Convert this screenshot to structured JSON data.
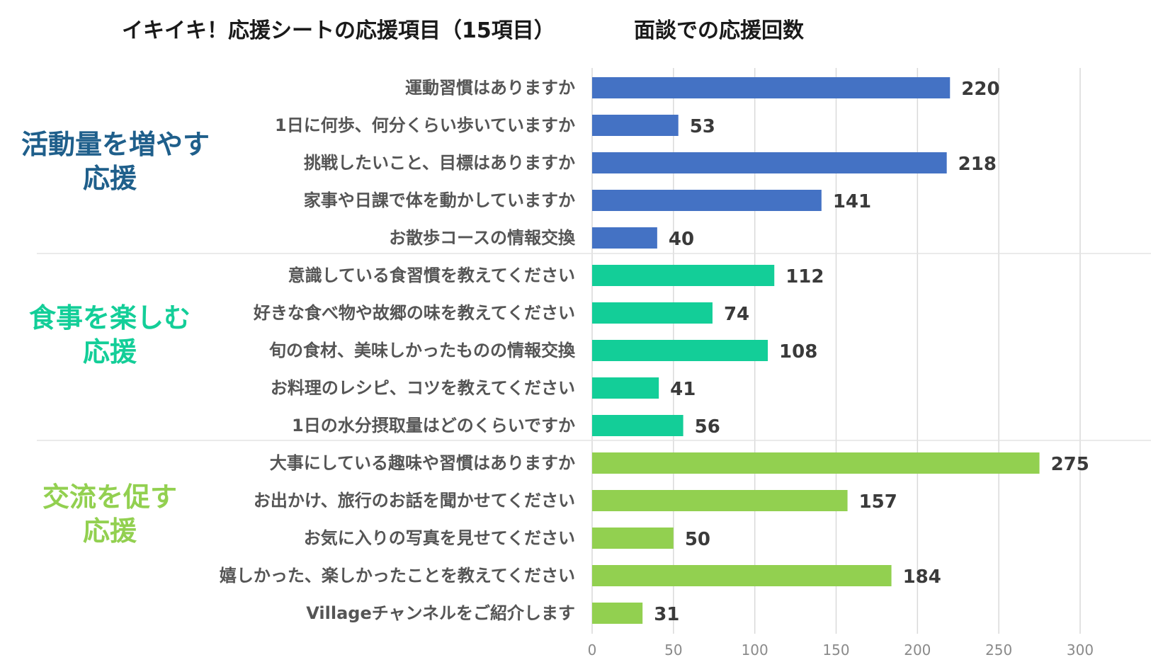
{
  "titles": {
    "left": "イキイキ！応援シートの応援項目（15項目）",
    "right": "面談での応援回数"
  },
  "groups": [
    {
      "name": "活動量を増やす",
      "name2": "応援",
      "color": "#4472C4"
    },
    {
      "name": "食事を楽しむ",
      "name2": "応援",
      "color": "#13CE98"
    },
    {
      "name": "交流を促す",
      "name2": "応援",
      "color": "#92D050"
    }
  ],
  "group_label_colors": [
    "#1F5F8B",
    "#13CE98",
    "#92D050"
  ],
  "chart_data": {
    "type": "bar",
    "orientation": "horizontal",
    "title": "面談での応援回数",
    "categories": [
      "運動習慣はありますか",
      "1日に何歩、何分くらい歩いていますか",
      "挑戦したいこと、目標はありますか",
      "家事や日課で体を動かしていますか",
      "お散歩コースの情報交換",
      "意識している食習慣を教えてください",
      "好きな食べ物や故郷の味を教えてください",
      "旬の食材、美味しかったものの情報交換",
      "お料理のレシピ、コツを教えてください",
      "1日の水分摂取量はどのくらいですか",
      "大事にしている趣味や習慣はありますか",
      "お出かけ、旅行のお話を聞かせてください",
      "お気に入りの写真を見せてください",
      "嬉しかった、楽しかったことを教えてください",
      "Villageチャンネルをご紹介します"
    ],
    "values": [
      220,
      53,
      218,
      141,
      40,
      112,
      74,
      108,
      41,
      56,
      275,
      157,
      50,
      184,
      31
    ],
    "group_index": [
      0,
      0,
      0,
      0,
      0,
      1,
      1,
      1,
      1,
      1,
      2,
      2,
      2,
      2,
      2
    ],
    "xlim": [
      0,
      300
    ],
    "xticks": [
      0,
      50,
      100,
      150,
      200,
      250,
      300
    ],
    "grid": true
  }
}
